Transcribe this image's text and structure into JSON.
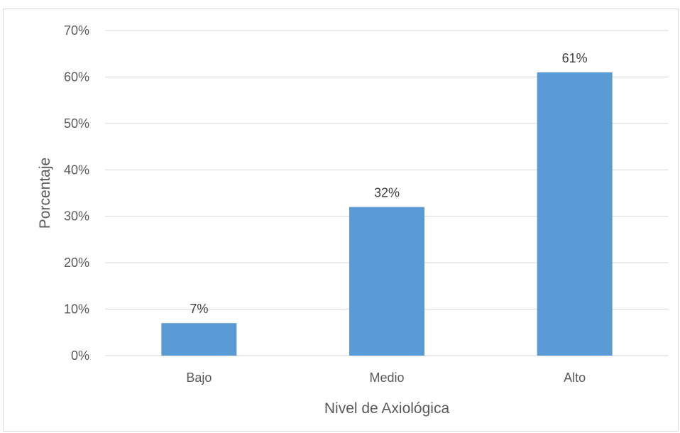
{
  "chart_data": {
    "type": "bar",
    "title": "",
    "xlabel": "Nivel de Axiológica",
    "ylabel": "Porcentaje",
    "categories": [
      "Bajo",
      "Medio",
      "Alto"
    ],
    "values": [
      7,
      32,
      61
    ],
    "data_labels": [
      "7%",
      "32%",
      "61%"
    ],
    "yticks": [
      0,
      10,
      20,
      30,
      40,
      50,
      60,
      70
    ],
    "ytick_labels": [
      "0%",
      "10%",
      "20%",
      "30%",
      "40%",
      "50%",
      "60%",
      "70%"
    ],
    "ylim": [
      0,
      70
    ],
    "grid": true,
    "legend": "none",
    "bar_color": "#5b9bd5",
    "gridline_color": "#d9d9d9"
  }
}
